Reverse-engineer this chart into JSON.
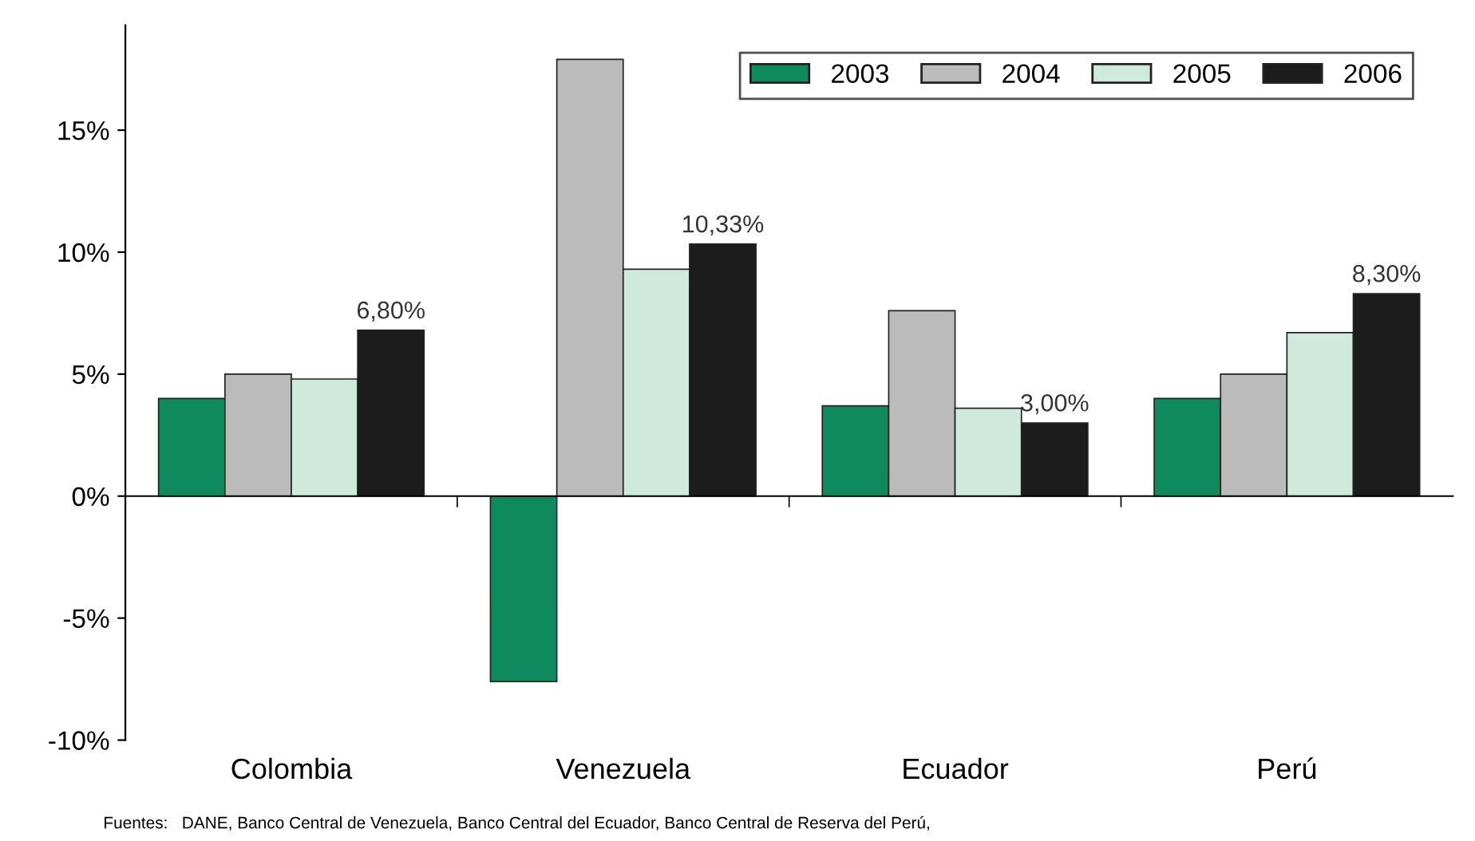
{
  "chart_data": {
    "type": "bar",
    "categories": [
      "Colombia",
      "Venezuela",
      "Ecuador",
      "Perú"
    ],
    "series": [
      {
        "name": "2003",
        "color": "#0f8a5f",
        "values": [
          4.0,
          -7.6,
          3.7,
          4.0
        ]
      },
      {
        "name": "2004",
        "color": "#bbbbbb",
        "values": [
          5.0,
          17.9,
          7.6,
          5.0
        ]
      },
      {
        "name": "2005",
        "color": "#cfe9dd",
        "values": [
          4.8,
          9.3,
          3.6,
          6.7
        ]
      },
      {
        "name": "2006",
        "color": "#1c1c1c",
        "values": [
          6.8,
          10.33,
          3.0,
          8.3
        ],
        "value_labels": [
          "6,80%",
          "10,33%",
          "3,00%",
          "8,30%"
        ]
      }
    ],
    "ylim": [
      -10,
      19.3
    ],
    "yticks": [
      {
        "value": -10,
        "label": "-10%"
      },
      {
        "value": -5,
        "label": "-5%"
      },
      {
        "value": 0,
        "label": "0%"
      },
      {
        "value": 5,
        "label": "5%"
      },
      {
        "value": 10,
        "label": "10%"
      },
      {
        "value": 15,
        "label": "15%"
      }
    ],
    "legend": "top right",
    "annotations": [
      "Fuentes:   DANE, Banco Central de Venezuela, Banco Central del Ecuador, Banco Central de Reserva del Perú,"
    ]
  }
}
